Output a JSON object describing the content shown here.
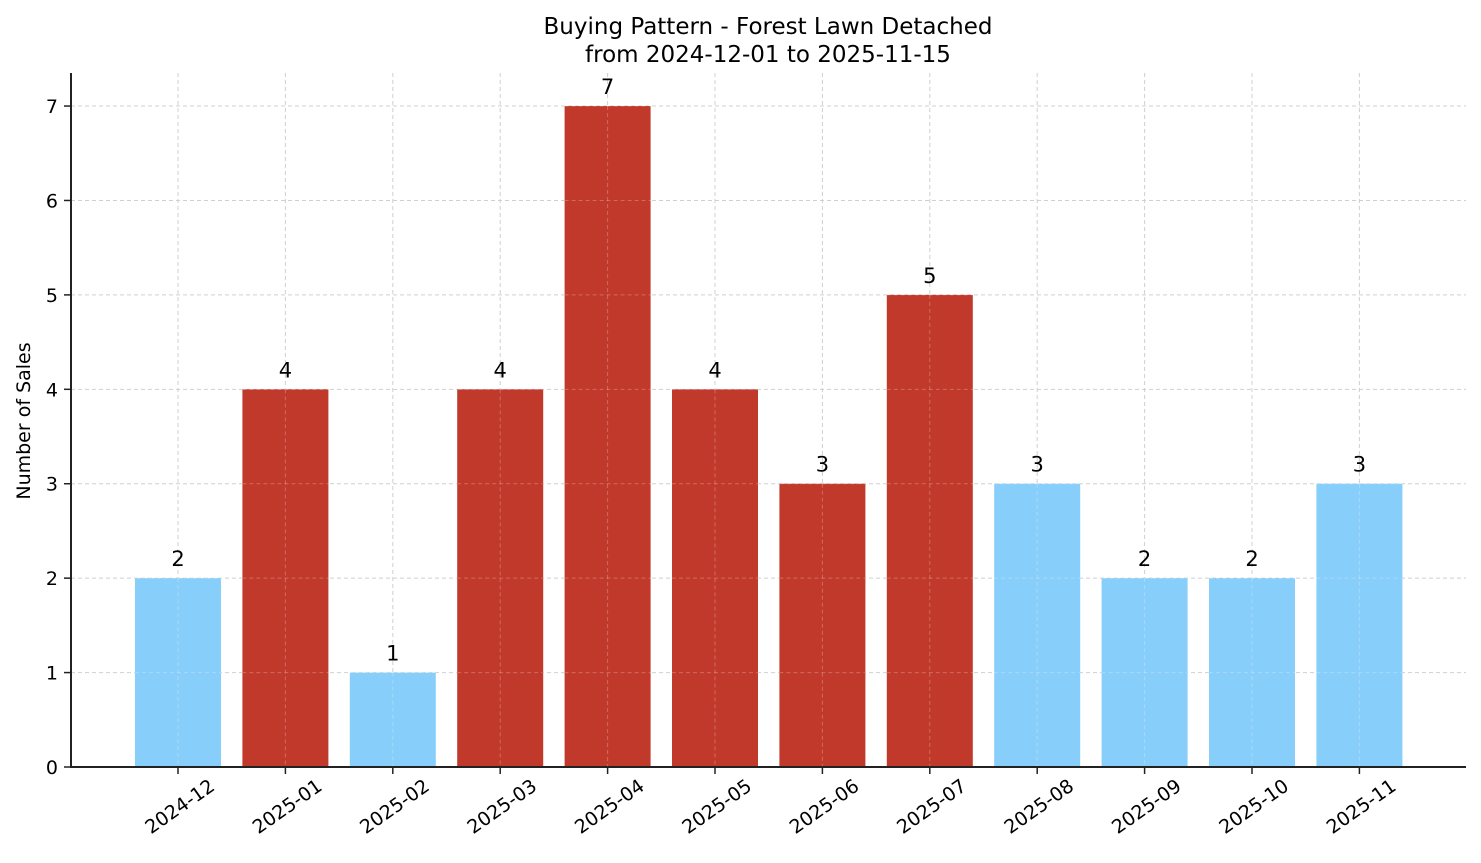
{
  "chart_data": {
    "type": "bar",
    "title": "Buying Pattern - Forest Lawn Detached",
    "subtitle": "from 2024-12-01 to 2025-11-15",
    "xlabel": "",
    "ylabel": "Number of Sales",
    "ylim": [
      0,
      7.35
    ],
    "yticks": [
      0,
      1,
      2,
      3,
      4,
      5,
      6,
      7
    ],
    "grid": true,
    "legend": null,
    "categories": [
      "2024-12",
      "2025-01",
      "2025-02",
      "2025-03",
      "2025-04",
      "2025-05",
      "2025-06",
      "2025-07",
      "2025-08",
      "2025-09",
      "2025-10",
      "2025-11"
    ],
    "values": [
      2,
      4,
      1,
      4,
      7,
      4,
      3,
      5,
      3,
      2,
      2,
      3
    ],
    "bar_colors": [
      "#87CEFA",
      "#C0392B",
      "#87CEFA",
      "#C0392B",
      "#C0392B",
      "#C0392B",
      "#C0392B",
      "#C0392B",
      "#87CEFA",
      "#87CEFA",
      "#87CEFA",
      "#87CEFA"
    ],
    "value_labels": [
      "2",
      "4",
      "1",
      "4",
      "7",
      "4",
      "3",
      "5",
      "3",
      "2",
      "2",
      "3"
    ]
  },
  "colors": {
    "high": "#C0392B",
    "low": "#87CEFA",
    "axis": "#222222",
    "grid": "#d0d0d0"
  }
}
